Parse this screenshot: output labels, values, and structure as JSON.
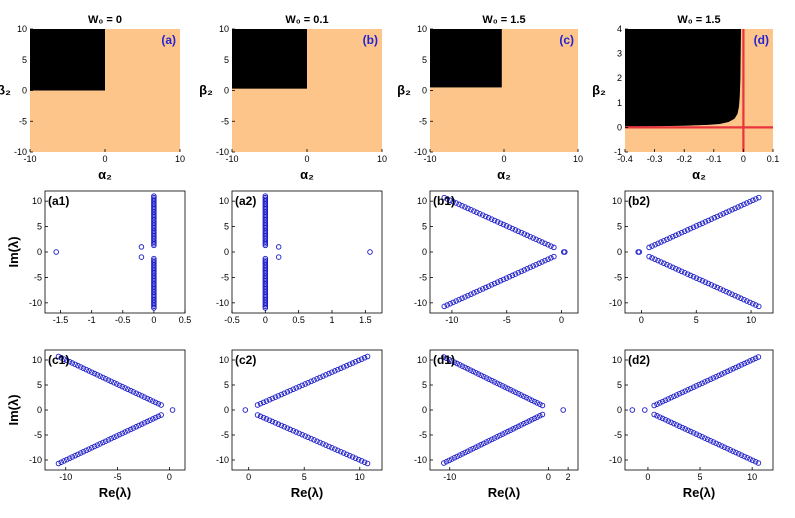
{
  "colors": {
    "region_light": "#fdc58a",
    "region_dark": "#000000",
    "marker": "#1b1bc8",
    "crosshair": "#e8343c",
    "label_accent": "#2323d2"
  },
  "chart_data": [
    {
      "id": "a",
      "type": "heatmap",
      "title": "W₀ = 0",
      "panel_label": "(a)",
      "xlabel": "α₂",
      "ylabel": "β₂",
      "xlim": [
        -10,
        10
      ],
      "ylim": [
        -10,
        10
      ],
      "xticks": [
        "-10",
        "0",
        "10"
      ],
      "yticks": [
        "10",
        "5",
        "0",
        "-5",
        "-10"
      ],
      "regions": [
        {
          "color": "light",
          "x": [
            -10,
            10
          ],
          "y": [
            -10,
            10
          ]
        },
        {
          "color": "dark",
          "x": [
            -10,
            0
          ],
          "y": [
            0,
            10
          ]
        }
      ]
    },
    {
      "id": "b",
      "type": "heatmap",
      "title": "W₀ = 0.1",
      "panel_label": "(b)",
      "xlabel": "α₂",
      "ylabel": "β₂",
      "xlim": [
        -10,
        10
      ],
      "ylim": [
        -10,
        10
      ],
      "xticks": [
        "-10",
        "0",
        "10"
      ],
      "yticks": [
        "10",
        "5",
        "0",
        "-5",
        "-10"
      ],
      "regions": [
        {
          "color": "light",
          "x": [
            -10,
            10
          ],
          "y": [
            -10,
            10
          ]
        },
        {
          "color": "dark",
          "x": [
            -10,
            0
          ],
          "y": [
            0.3,
            10
          ]
        }
      ]
    },
    {
      "id": "c",
      "type": "heatmap",
      "title": "W₀ = 1.5",
      "panel_label": "(c)",
      "xlabel": "α₂",
      "ylabel": "β₂",
      "xlim": [
        -10,
        10
      ],
      "ylim": [
        -10,
        10
      ],
      "xticks": [
        "-10",
        "0",
        "10"
      ],
      "yticks": [
        "10",
        "5",
        "0",
        "-5",
        "-10"
      ],
      "regions": [
        {
          "color": "light",
          "x": [
            -10,
            10
          ],
          "y": [
            -10,
            10
          ]
        },
        {
          "color": "dark",
          "x": [
            -10,
            -0.3
          ],
          "y": [
            0.5,
            10
          ]
        }
      ]
    },
    {
      "id": "d",
      "type": "heatmap",
      "title": "W₀ = 1.5",
      "panel_label": "(d)",
      "xlabel": "α₂",
      "ylabel": "β₂",
      "xlim": [
        -0.4,
        0.1
      ],
      "ylim": [
        -1,
        4
      ],
      "xticks": [
        "-0.4",
        "-0.3",
        "-0.2",
        "-0.1",
        "0",
        "0.1"
      ],
      "yticks": [
        "4",
        "3",
        "2",
        "1",
        "0",
        "-1"
      ],
      "boundary": [
        [
          -0.4,
          0.04
        ],
        [
          -0.3,
          0.05
        ],
        [
          -0.2,
          0.07
        ],
        [
          -0.12,
          0.1
        ],
        [
          -0.08,
          0.14
        ],
        [
          -0.05,
          0.22
        ],
        [
          -0.03,
          0.35
        ],
        [
          -0.02,
          0.55
        ],
        [
          -0.015,
          0.85
        ],
        [
          -0.012,
          1.3
        ],
        [
          -0.01,
          2.0
        ],
        [
          -0.009,
          3.0
        ],
        [
          -0.008,
          4.0
        ]
      ],
      "crosshair": {
        "x": 0,
        "y": 0
      }
    },
    {
      "id": "a1",
      "type": "scatter",
      "panel_label": "(a1)",
      "xlabel": "",
      "ylabel": "Im(λ)",
      "xlim": [
        -1.75,
        0.5
      ],
      "ylim": [
        -12,
        12
      ],
      "xticks": [
        [
          -1.5,
          "-1.5"
        ],
        [
          -1,
          "-1"
        ],
        [
          -0.5,
          "-0.5"
        ],
        [
          0,
          "0"
        ],
        [
          0.5,
          "0.5"
        ]
      ],
      "yticks": [
        [
          10,
          "10"
        ],
        [
          5,
          "5"
        ],
        [
          0,
          "0"
        ],
        [
          -5,
          "-5"
        ],
        [
          -10,
          "-10"
        ]
      ],
      "points": [
        [
          -1.57,
          0
        ],
        [
          -0.2,
          1
        ],
        [
          -0.2,
          -1
        ]
      ],
      "columns": [
        {
          "x": 0,
          "y_from": 1.3,
          "y_to": 11,
          "n": 32
        },
        {
          "x": 0,
          "y_from": -1.3,
          "y_to": -11,
          "n": 32
        }
      ]
    },
    {
      "id": "a2",
      "type": "scatter",
      "panel_label": "(a2)",
      "xlabel": "",
      "ylabel": "",
      "xlim": [
        -0.5,
        1.75
      ],
      "ylim": [
        -12,
        12
      ],
      "xticks": [
        [
          -0.5,
          "-0.5"
        ],
        [
          0,
          "0"
        ],
        [
          0.5,
          "0.5"
        ],
        [
          1,
          "1"
        ],
        [
          1.5,
          "1.5"
        ]
      ],
      "yticks": [
        [
          10,
          "10"
        ],
        [
          5,
          "5"
        ],
        [
          0,
          "0"
        ],
        [
          -5,
          "-5"
        ],
        [
          -10,
          "-10"
        ]
      ],
      "points": [
        [
          1.57,
          0
        ],
        [
          0.2,
          1
        ],
        [
          0.2,
          -1
        ]
      ],
      "columns": [
        {
          "x": 0,
          "y_from": 1.3,
          "y_to": 11,
          "n": 32
        },
        {
          "x": 0,
          "y_from": -1.3,
          "y_to": -11,
          "n": 32
        }
      ]
    },
    {
      "id": "b1",
      "type": "scatter",
      "panel_label": "(b1)",
      "xlabel": "",
      "ylabel": "",
      "xlim": [
        -12,
        1.5
      ],
      "ylim": [
        -12,
        12
      ],
      "xticks": [
        [
          -10,
          "-10"
        ],
        [
          -5,
          "-5"
        ],
        [
          0,
          "0"
        ]
      ],
      "yticks": [
        [
          10,
          "10"
        ],
        [
          5,
          "5"
        ],
        [
          0,
          "0"
        ],
        [
          -5,
          "-5"
        ],
        [
          -10,
          "-10"
        ]
      ],
      "points": [
        [
          0.2,
          0
        ],
        [
          0.3,
          0
        ]
      ],
      "branches": [
        {
          "from": [
            -0.7,
            0.9
          ],
          "to": [
            -10.7,
            10.7
          ],
          "n": 38
        },
        {
          "from": [
            -0.7,
            -0.9
          ],
          "to": [
            -10.7,
            -10.7
          ],
          "n": 38
        }
      ]
    },
    {
      "id": "b2",
      "type": "scatter",
      "panel_label": "(b2)",
      "xlabel": "",
      "ylabel": "",
      "xlim": [
        -1.5,
        12
      ],
      "ylim": [
        -12,
        12
      ],
      "xticks": [
        [
          0,
          "0"
        ],
        [
          5,
          "5"
        ],
        [
          10,
          "10"
        ]
      ],
      "yticks": [
        [
          10,
          "10"
        ],
        [
          5,
          "5"
        ],
        [
          0,
          "0"
        ],
        [
          -5,
          "-5"
        ],
        [
          -10,
          "-10"
        ]
      ],
      "points": [
        [
          -0.2,
          0
        ],
        [
          -0.3,
          0
        ]
      ],
      "branches": [
        {
          "from": [
            0.7,
            0.9
          ],
          "to": [
            10.7,
            10.7
          ],
          "n": 38
        },
        {
          "from": [
            0.7,
            -0.9
          ],
          "to": [
            10.7,
            -10.7
          ],
          "n": 38
        }
      ]
    },
    {
      "id": "c1",
      "type": "scatter",
      "panel_label": "(c1)",
      "xlabel": "Re(λ)",
      "ylabel": "Im(λ)",
      "xlim": [
        -12,
        1.5
      ],
      "ylim": [
        -12,
        12
      ],
      "xticks": [
        [
          -10,
          "-10"
        ],
        [
          -5,
          "-5"
        ],
        [
          0,
          "0"
        ]
      ],
      "yticks": [
        [
          10,
          "10"
        ],
        [
          5,
          "5"
        ],
        [
          0,
          "0"
        ],
        [
          -5,
          "-5"
        ],
        [
          -10,
          "-10"
        ]
      ],
      "points": [
        [
          0.3,
          0
        ]
      ],
      "branches": [
        {
          "from": [
            -0.8,
            1
          ],
          "to": [
            -10.7,
            10.7
          ],
          "n": 38
        },
        {
          "from": [
            -0.8,
            -1
          ],
          "to": [
            -10.7,
            -10.7
          ],
          "n": 38
        }
      ]
    },
    {
      "id": "c2",
      "type": "scatter",
      "panel_label": "(c2)",
      "xlabel": "Re(λ)",
      "ylabel": "",
      "xlim": [
        -1.5,
        12
      ],
      "ylim": [
        -12,
        12
      ],
      "xticks": [
        [
          0,
          "0"
        ],
        [
          5,
          "5"
        ],
        [
          10,
          "10"
        ]
      ],
      "yticks": [
        [
          10,
          "10"
        ],
        [
          5,
          "5"
        ],
        [
          0,
          "0"
        ],
        [
          -5,
          "-5"
        ],
        [
          -10,
          "-10"
        ]
      ],
      "points": [
        [
          -0.3,
          0
        ]
      ],
      "branches": [
        {
          "from": [
            0.8,
            1
          ],
          "to": [
            10.7,
            10.7
          ],
          "n": 38
        },
        {
          "from": [
            0.8,
            -1
          ],
          "to": [
            10.7,
            -10.7
          ],
          "n": 38
        }
      ]
    },
    {
      "id": "d1",
      "type": "scatter",
      "panel_label": "(d1)",
      "xlabel": "Re(λ)",
      "ylabel": "",
      "xlim": [
        -12,
        3
      ],
      "ylim": [
        -12,
        12
      ],
      "xticks": [
        [
          -10,
          "-10"
        ],
        [
          0,
          "0"
        ],
        [
          2,
          "2"
        ]
      ],
      "yticks": [
        [
          10,
          "10"
        ],
        [
          5,
          "5"
        ],
        [
          0,
          "0"
        ],
        [
          -5,
          "-5"
        ],
        [
          -10,
          "-10"
        ]
      ],
      "points": [
        [
          1.5,
          0
        ]
      ],
      "branches": [
        {
          "from": [
            -0.6,
            0.9
          ],
          "to": [
            -10.6,
            10.6
          ],
          "n": 38
        },
        {
          "from": [
            -0.6,
            -0.9
          ],
          "to": [
            -10.6,
            -10.6
          ],
          "n": 38
        }
      ]
    },
    {
      "id": "d2",
      "type": "scatter",
      "panel_label": "(d2)",
      "xlabel": "Re(λ)",
      "ylabel": "",
      "xlim": [
        -2.2,
        12
      ],
      "ylim": [
        -12,
        12
      ],
      "xticks": [
        [
          0,
          "0"
        ],
        [
          5,
          "5"
        ],
        [
          10,
          "10"
        ]
      ],
      "yticks": [
        [
          10,
          "10"
        ],
        [
          5,
          "5"
        ],
        [
          0,
          "0"
        ],
        [
          -5,
          "-5"
        ],
        [
          -10,
          "-10"
        ]
      ],
      "points": [
        [
          -1.5,
          0
        ],
        [
          -0.3,
          0
        ]
      ],
      "branches": [
        {
          "from": [
            0.6,
            0.9
          ],
          "to": [
            10.6,
            10.6
          ],
          "n": 38
        },
        {
          "from": [
            0.6,
            -0.9
          ],
          "to": [
            10.6,
            -10.6
          ],
          "n": 38
        }
      ]
    }
  ]
}
